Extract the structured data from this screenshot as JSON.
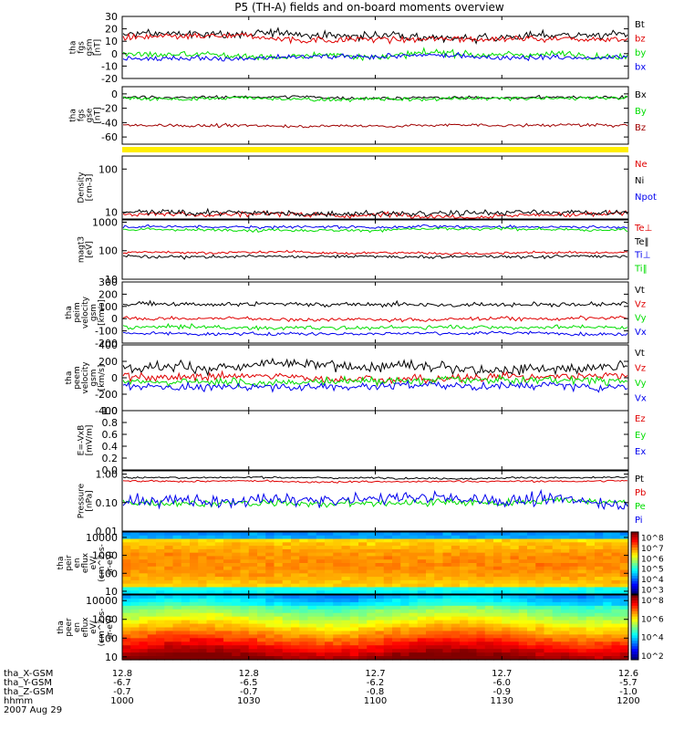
{
  "title": "P5 (TH-A) fields and on-board moments overview",
  "colors": {
    "black": "#000000",
    "red": "#e00000",
    "green": "#00dd00",
    "blue": "#0000ee",
    "darkred": "#a00000",
    "yellow": "#ffee00"
  },
  "chart_data": [
    {
      "type": "line",
      "id": "fgs_gsm",
      "ylabel": [
        "tha",
        "fgs",
        "gsm",
        "[nT]"
      ],
      "ylim": [
        -20,
        30
      ],
      "yticks": [
        "30",
        "20",
        "10",
        "0",
        "-10",
        "-20"
      ],
      "ytickvals": [
        30,
        20,
        10,
        0,
        -10,
        -20
      ],
      "series": [
        {
          "name": "bt",
          "label": "Bt",
          "color": "black",
          "level": 15,
          "noise": 3
        },
        {
          "name": "bz",
          "label": "bz",
          "color": "red",
          "level": 12,
          "noise": 2.5
        },
        {
          "name": "by",
          "label": "by",
          "color": "green",
          "level": -1,
          "noise": 2.5
        },
        {
          "name": "bx",
          "label": "bx",
          "color": "blue",
          "level": -3,
          "noise": 2
        }
      ]
    },
    {
      "type": "line",
      "id": "fgs_gse",
      "ylabel": [
        "tha",
        "fgs",
        "gse",
        "[nT]"
      ],
      "ylim": [
        -70,
        10
      ],
      "yticks": [
        "0",
        "-20",
        "-40",
        "-60"
      ],
      "ytickvals": [
        0,
        -20,
        -40,
        -60
      ],
      "series": [
        {
          "name": "Bx",
          "label": "Bx",
          "color": "black",
          "level": -5,
          "noise": 2
        },
        {
          "name": "By",
          "label": "By",
          "color": "green",
          "level": -7,
          "noise": 2.5
        },
        {
          "name": "Bz",
          "label": "Bz",
          "color": "darkred",
          "level": -44,
          "noise": 2
        }
      ]
    },
    {
      "type": "bar",
      "id": "mode_bar",
      "color": "yellow"
    },
    {
      "type": "line",
      "id": "density",
      "yscale": "log",
      "ylabel": [
        "Density",
        "[cm-3]"
      ],
      "ylim": [
        7,
        200
      ],
      "yticks": [
        "100",
        "10"
      ],
      "ytickvals": [
        100,
        10
      ],
      "series": [
        {
          "name": "Ne",
          "label": "Ne",
          "color": "red",
          "level": 9,
          "noise": 0.06
        },
        {
          "name": "Ni",
          "label": "Ni",
          "color": "black",
          "level": 9.5,
          "noise": 0.06
        },
        {
          "name": "Npot",
          "label": "Npot",
          "color": "blue",
          "level": null
        }
      ]
    },
    {
      "type": "line",
      "id": "temp",
      "yscale": "log",
      "ylabel": [
        "magt3",
        "[eV]"
      ],
      "ylim": [
        10,
        1200
      ],
      "yticks": [
        "1000",
        "100",
        "10"
      ],
      "ytickvals": [
        1000,
        100,
        10
      ],
      "series": [
        {
          "name": "Te_perp",
          "label": "Te⊥",
          "color": "red",
          "level": 85,
          "noise": 0.04
        },
        {
          "name": "Te_par",
          "label": "Te‖",
          "color": "black",
          "level": 62,
          "noise": 0.05
        },
        {
          "name": "Ti_perp",
          "label": "Ti⊥",
          "color": "blue",
          "level": 700,
          "noise": 0.05
        },
        {
          "name": "Ti_par",
          "label": "Ti‖",
          "color": "green",
          "level": 550,
          "noise": 0.05
        }
      ]
    },
    {
      "type": "line",
      "id": "peim_vel",
      "ylabel": [
        "tha",
        "peim",
        "velocity",
        "gsm",
        "[km/s]"
      ],
      "ylim": [
        -200,
        300
      ],
      "yticks": [
        "300",
        "200",
        "100",
        "0",
        "-100",
        "-200"
      ],
      "ytickvals": [
        300,
        200,
        100,
        0,
        -100,
        -200
      ],
      "series": [
        {
          "name": "Vt",
          "label": "Vt",
          "color": "black",
          "level": 120,
          "noise": 18
        },
        {
          "name": "Vz",
          "label": "Vz",
          "color": "red",
          "level": 0,
          "noise": 14
        },
        {
          "name": "Vy",
          "label": "Vy",
          "color": "green",
          "level": -70,
          "noise": 15
        },
        {
          "name": "Vx",
          "label": "Vx",
          "color": "blue",
          "level": -120,
          "noise": 12
        }
      ]
    },
    {
      "type": "line",
      "id": "peem_vel",
      "ylabel": [
        "tha",
        "peem",
        "velocity",
        "gsm",
        "[km/s]"
      ],
      "ylim": [
        -400,
        400
      ],
      "yticks": [
        "400",
        "200",
        "0",
        "-200",
        "-400"
      ],
      "ytickvals": [
        400,
        200,
        0,
        -200,
        -400
      ],
      "series": [
        {
          "name": "Vt",
          "label": "Vt",
          "color": "black",
          "level": 130,
          "noise": 60
        },
        {
          "name": "Vz",
          "label": "Vz",
          "color": "red",
          "level": 10,
          "noise": 45
        },
        {
          "name": "Vy",
          "label": "Vy",
          "color": "green",
          "level": -40,
          "noise": 45
        },
        {
          "name": "Vx",
          "label": "Vx",
          "color": "blue",
          "level": -100,
          "noise": 45
        }
      ]
    },
    {
      "type": "line",
      "id": "efield",
      "ylabel": [
        "E=-VxB",
        "[mV/m]"
      ],
      "ylim": [
        0,
        1
      ],
      "yticks": [
        "1.0",
        "0.8",
        "0.6",
        "0.4",
        "0.2",
        "0.0"
      ],
      "ytickvals": [
        1,
        0.8,
        0.6,
        0.4,
        0.2,
        0
      ],
      "series": [
        {
          "name": "Ez",
          "label": "Ez",
          "color": "red",
          "level": null
        },
        {
          "name": "Ey",
          "label": "Ey",
          "color": "green",
          "level": null
        },
        {
          "name": "Ex",
          "label": "Ex",
          "color": "blue",
          "level": null
        }
      ]
    },
    {
      "type": "line",
      "id": "pressure",
      "yscale": "log",
      "ylabel": [
        "Pressure",
        "[nPa]"
      ],
      "ylim": [
        0.01,
        1.3
      ],
      "yticks": [
        "1.00",
        "0.10",
        "0.01"
      ],
      "ytickvals": [
        1,
        0.1,
        0.01
      ],
      "series": [
        {
          "name": "Pt",
          "label": "Pt",
          "color": "black",
          "level": 0.75,
          "noise": 0.03
        },
        {
          "name": "Pb",
          "label": "Pb",
          "color": "red",
          "level": 0.55,
          "noise": 0.03
        },
        {
          "name": "Pe",
          "label": "Pe",
          "color": "green",
          "level": 0.1,
          "noise": 0.12
        },
        {
          "name": "Pi",
          "label": "Pi",
          "color": "blue",
          "level": 0.12,
          "noise": 0.2
        }
      ]
    },
    {
      "type": "heatmap",
      "id": "peir_spec",
      "yscale": "log",
      "ylabel": [
        "tha",
        "peir",
        "en",
        "eflux",
        "eV/",
        "(cm^2-s-",
        "sr-eV)"
      ],
      "ylim": [
        7,
        20000
      ],
      "yticks": [
        "10000",
        "1000",
        "100",
        "10"
      ],
      "ytickvals": [
        10000,
        1000,
        100,
        10
      ],
      "colorbar": {
        "labels": [
          "10^8",
          "10^7",
          "10^6",
          "10^5",
          "10^4",
          "10^3"
        ],
        "exps": [
          8,
          7,
          6,
          5,
          4,
          3
        ],
        "range": [
          2.5,
          8.5
        ]
      }
    },
    {
      "type": "heatmap",
      "id": "peer_spec",
      "yscale": "log",
      "ylabel": [
        "tha",
        "peer",
        "en",
        "eflux",
        "eV/",
        "(cm^2-s-",
        "sr-eV)"
      ],
      "ylim": [
        7,
        20000
      ],
      "yticks": [
        "10000",
        "1000",
        "100",
        "10"
      ],
      "ytickvals": [
        10000,
        1000,
        100,
        10
      ],
      "colorbar": {
        "labels": [
          "10^8",
          "10^6",
          "10^4",
          "10^2"
        ],
        "exps": [
          8,
          6,
          4,
          2
        ],
        "range": [
          1.5,
          8.5
        ]
      }
    }
  ],
  "xaxis": {
    "rows": [
      {
        "label": "tha_X-GSM",
        "values": [
          "12.8",
          "12.8",
          "12.7",
          "12.7",
          "12.6"
        ]
      },
      {
        "label": "tha_Y-GSM",
        "values": [
          "-6.7",
          "-6.5",
          "-6.2",
          "-6.0",
          "-5.7"
        ]
      },
      {
        "label": "tha_Z-GSM",
        "values": [
          "-0.7",
          "-0.7",
          "-0.8",
          "-0.9",
          "-1.0"
        ]
      },
      {
        "label": "hhmm",
        "values": [
          "1000",
          "1030",
          "1100",
          "1130",
          "1200"
        ]
      }
    ],
    "date": "2007 Aug 29"
  }
}
